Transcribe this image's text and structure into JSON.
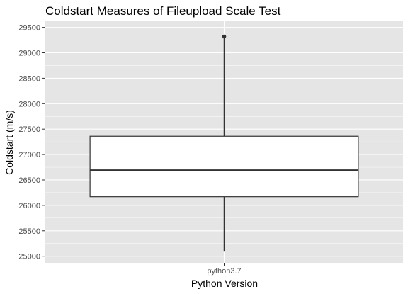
{
  "chart_data": {
    "type": "box",
    "title": "Coldstart Measures of Fileupload Scale Test",
    "xlabel": "Python Version",
    "ylabel": "Coldstart (m/s)",
    "categories": [
      "python3.7"
    ],
    "ylim": [
      24870,
      29620
    ],
    "yticks": [
      25000,
      25500,
      26000,
      26500,
      27000,
      27500,
      28000,
      28500,
      29000,
      29500
    ],
    "grid": true,
    "legend": "none",
    "boxes": [
      {
        "category": "python3.7",
        "whisker_low": 25090,
        "q1": 26170,
        "median": 26690,
        "q3": 27360,
        "whisker_high": 29300,
        "outliers": [
          29320
        ]
      }
    ],
    "colors": {
      "panel": "#e5e5e5",
      "grid_major": "#ffffff",
      "box_fill": "#ffffff",
      "box_stroke": "#333333",
      "axis_text": "#4d4d4d",
      "title": "#000000"
    }
  }
}
